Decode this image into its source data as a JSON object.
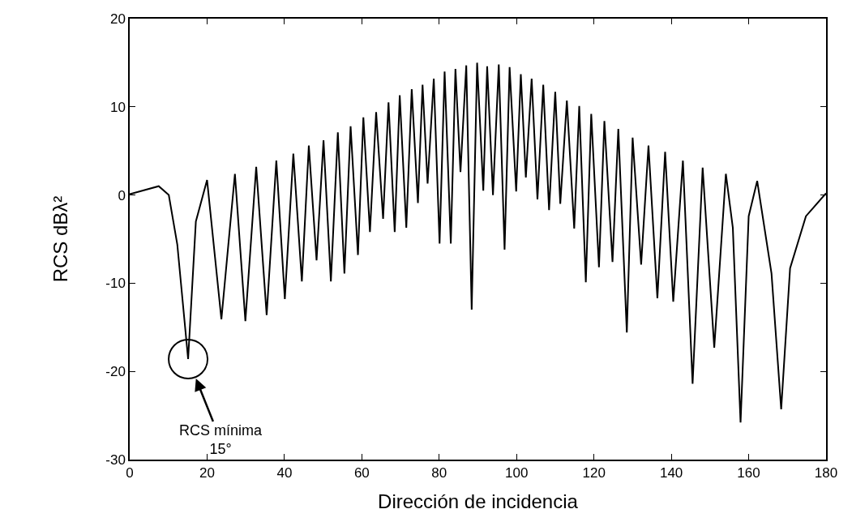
{
  "chart_data": {
    "type": "line",
    "xlabel": "Dirección de incidencia",
    "ylabel": "RCS dBλ²",
    "x": [
      0,
      7.5,
      10.1,
      12.3,
      15.1,
      17.1,
      20,
      23.7,
      27.2,
      29.9,
      32.7,
      35.4,
      37.9,
      40.1,
      42.3,
      44.5,
      46.3,
      48.3,
      50.1,
      52.0,
      53.8,
      55.5,
      57.1,
      59.0,
      60.4,
      62.1,
      63.7,
      65.5,
      66.9,
      68.5,
      69.8,
      71.5,
      72.9,
      74.5,
      75.7,
      77.0,
      78.6,
      80.1,
      81.4,
      83.0,
      84.2,
      85.5,
      87.0,
      88.4,
      89.8,
      91.4,
      92.4,
      93.9,
      95.4,
      96.9,
      98.2,
      99.9,
      101.1,
      102.4,
      103.9,
      105.4,
      106.9,
      108.4,
      110.0,
      111.3,
      113.0,
      114.9,
      116.2,
      117.9,
      119.3,
      121.3,
      122.7,
      124.8,
      126.3,
      128.5,
      130.0,
      132.2,
      134.1,
      136.4,
      138.4,
      140.5,
      143.0,
      145.5,
      148.1,
      151.1,
      154.1,
      155.9,
      157.9,
      160.0,
      162.2,
      165.9,
      168.4,
      170.7,
      174.8,
      180
    ],
    "series": [
      {
        "color": "#000000",
        "values": [
          0.1,
          1.0,
          0,
          -5.6,
          -18.6,
          -3.0,
          1.7,
          -14.1,
          2.4,
          -14.3,
          3.2,
          -13.6,
          3.9,
          -11.8,
          4.7,
          -9.8,
          5.6,
          -7.4,
          6.2,
          -9.8,
          7.1,
          -8.9,
          7.8,
          -6.8,
          8.8,
          -4.2,
          9.4,
          -2.7,
          10.5,
          -4.2,
          11.3,
          -3.7,
          12.0,
          -0.9,
          12.5,
          1.3,
          13.2,
          -5.5,
          14.0,
          -5.5,
          14.3,
          2.6,
          14.7,
          -13.0,
          15.0,
          0.5,
          14.6,
          0.0,
          14.8,
          -6.2,
          14.5,
          0.4,
          13.7,
          2.0,
          13.2,
          -0.5,
          12.5,
          -1.7,
          11.7,
          -1.0,
          10.7,
          -3.8,
          10.1,
          -9.9,
          9.2,
          -8.2,
          8.4,
          -7.6,
          7.5,
          -15.6,
          6.5,
          -7.9,
          5.6,
          -11.7,
          4.9,
          -12.1,
          3.9,
          -21.4,
          3.1,
          -17.3,
          2.4,
          -3.7,
          -25.8,
          -2.4,
          1.6,
          -8.9,
          -24.3,
          -8.3,
          -2.4,
          0.2
        ]
      }
    ],
    "xlim": [
      0,
      180
    ],
    "xticks": [
      0,
      20,
      40,
      60,
      80,
      100,
      120,
      140,
      160,
      180
    ],
    "ylim": [
      -30,
      20
    ],
    "yticks": [
      -30,
      -20,
      -10,
      0,
      10,
      20
    ],
    "grid": false,
    "marker": "none",
    "line_style": "solid",
    "annotations": [
      {
        "text": "RCS mínima\n15°",
        "x": 15.1,
        "y": -18.6
      }
    ]
  }
}
